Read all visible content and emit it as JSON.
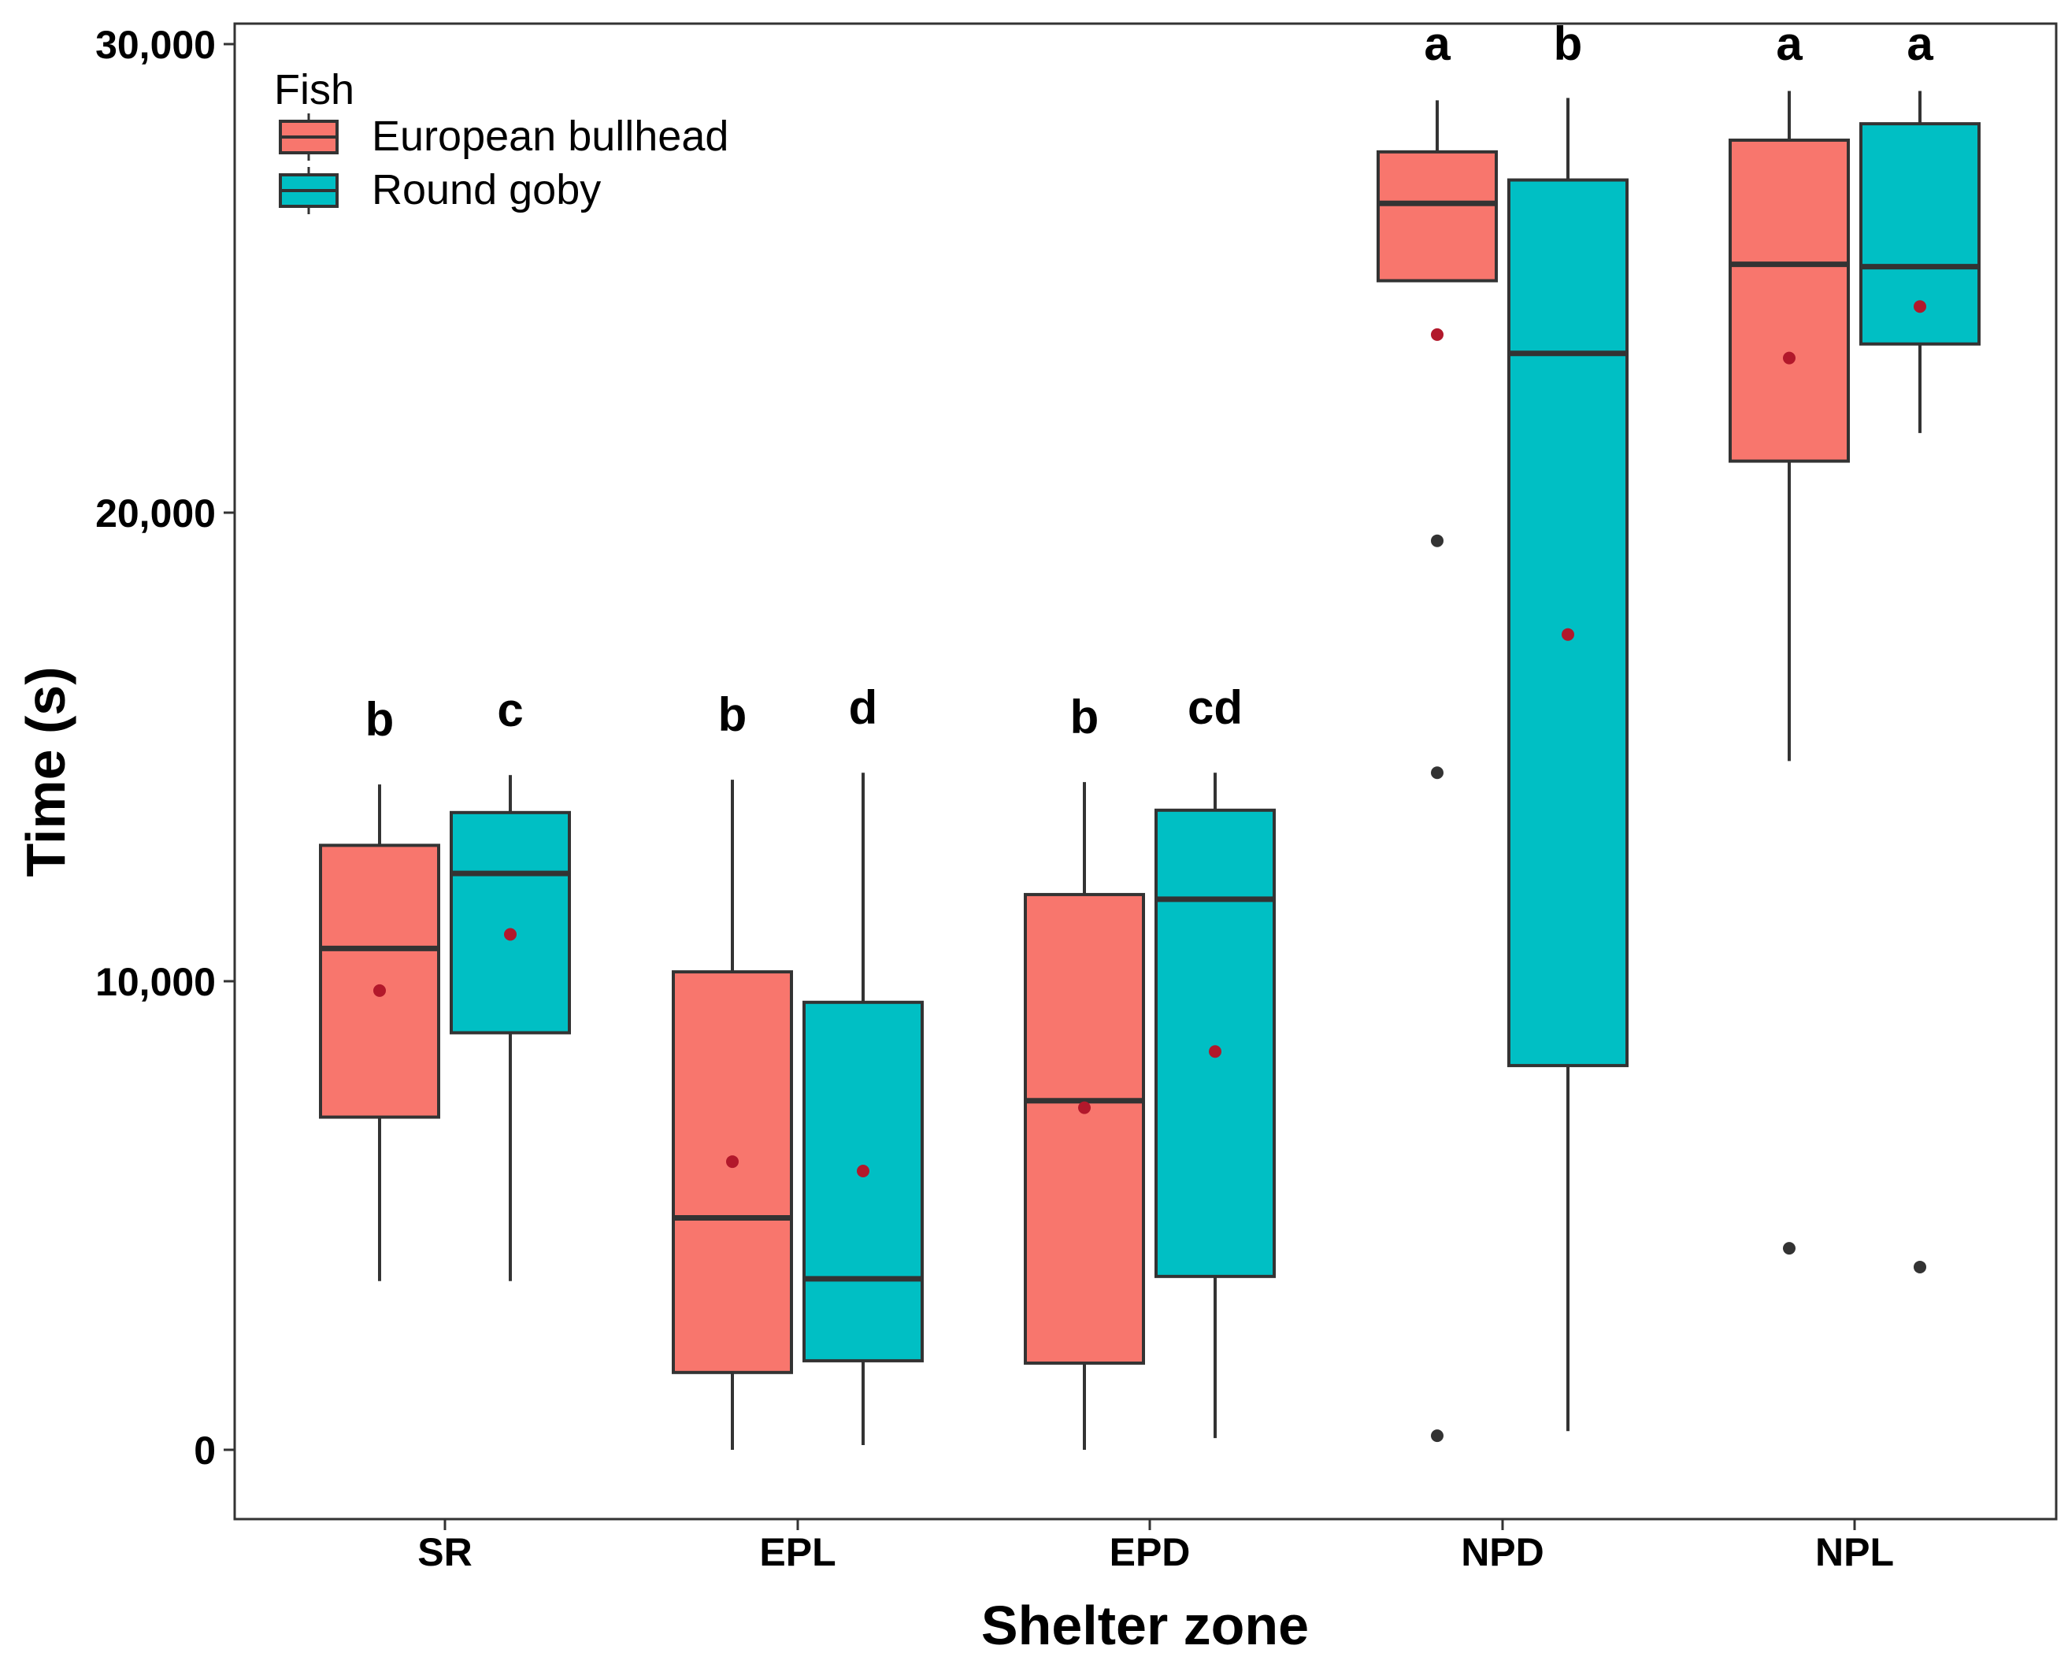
{
  "chart_data": {
    "type": "boxplot",
    "title": "",
    "xlabel": "Shelter zone",
    "ylabel": "Time (s)",
    "ylim": [
      -1500,
      30300
    ],
    "yticks": [
      0,
      10000,
      20000,
      30000
    ],
    "ytick_labels": [
      "0",
      "10,000",
      "20,000",
      "30,000"
    ],
    "categories": [
      "SR",
      "EPL",
      "EPD",
      "NPD",
      "NPL"
    ],
    "grid": false,
    "legend": {
      "title": "Fish",
      "position": "top-left",
      "entries": [
        "European bullhead",
        "Round goby"
      ]
    },
    "series": [
      {
        "name": "European bullhead",
        "color": "#F8766D",
        "boxes": [
          {
            "category": "SR",
            "whisker_low": 3600,
            "q1": 7100,
            "median": 10700,
            "q3": 12900,
            "whisker_high": 14200,
            "mean": 9800,
            "outliers": [],
            "letter": "b"
          },
          {
            "category": "EPL",
            "whisker_low": 0,
            "q1": 1650,
            "median": 4950,
            "q3": 10200,
            "whisker_high": 14300,
            "mean": 6150,
            "outliers": [],
            "letter": "b"
          },
          {
            "category": "EPD",
            "whisker_low": 0,
            "q1": 1850,
            "median": 7450,
            "q3": 11850,
            "whisker_high": 14250,
            "mean": 7300,
            "outliers": [],
            "letter": "b"
          },
          {
            "category": "NPD",
            "whisker_low": 24950,
            "q1": 24950,
            "median": 26600,
            "q3": 27700,
            "whisker_high": 28800,
            "mean": 23800,
            "outliers": [
              19400,
              14450,
              300
            ],
            "letter": "a"
          },
          {
            "category": "NPL",
            "whisker_low": 14700,
            "q1": 21100,
            "median": 25300,
            "q3": 27950,
            "whisker_high": 29000,
            "mean": 23300,
            "outliers": [
              4300
            ],
            "letter": "a"
          }
        ]
      },
      {
        "name": "Round goby",
        "color": "#00BFC4",
        "boxes": [
          {
            "category": "SR",
            "whisker_low": 3600,
            "q1": 8900,
            "median": 12300,
            "q3": 13600,
            "whisker_high": 14400,
            "mean": 11000,
            "outliers": [],
            "letter": "c"
          },
          {
            "category": "EPL",
            "whisker_low": 100,
            "q1": 1900,
            "median": 3650,
            "q3": 9550,
            "whisker_high": 14450,
            "mean": 5950,
            "outliers": [],
            "letter": "d"
          },
          {
            "category": "EPD",
            "whisker_low": 250,
            "q1": 3700,
            "median": 11750,
            "q3": 13650,
            "whisker_high": 14450,
            "mean": 8500,
            "outliers": [],
            "letter": "cd"
          },
          {
            "category": "NPD",
            "whisker_low": 400,
            "q1": 8200,
            "median": 23400,
            "q3": 27100,
            "whisker_high": 28850,
            "mean": 17400,
            "outliers": [],
            "letter": "b"
          },
          {
            "category": "NPL",
            "whisker_low": 21700,
            "q1": 23600,
            "median": 25250,
            "q3": 28300,
            "whisker_high": 29000,
            "mean": 24400,
            "outliers": [
              3900
            ],
            "letter": "a"
          }
        ]
      }
    ]
  }
}
